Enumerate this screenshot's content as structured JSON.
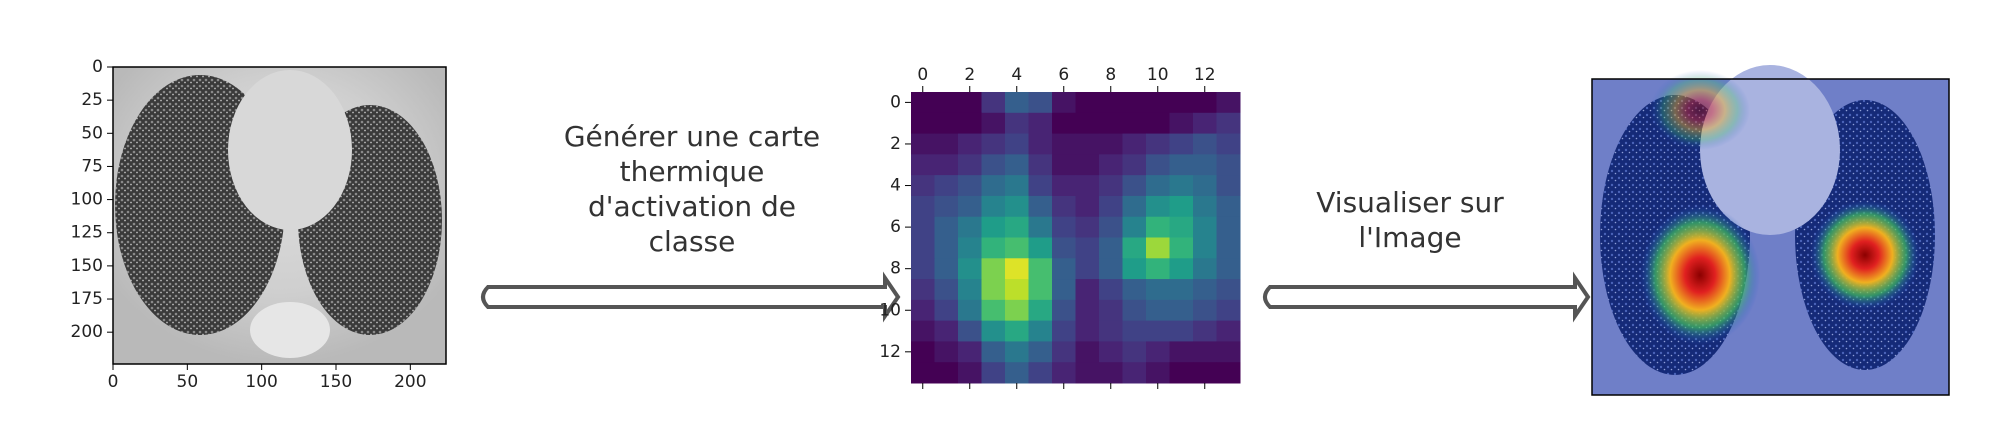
{
  "input_image": {
    "xlim": [
      0,
      224
    ],
    "ylim": [
      0,
      224
    ],
    "xticks": [
      0,
      50,
      100,
      150,
      200
    ],
    "yticks": [
      0,
      25,
      50,
      75,
      100,
      125,
      150,
      175,
      200
    ]
  },
  "step_1": {
    "lines": [
      "Générer une carte",
      "thermique",
      "d'activation de",
      "classe"
    ]
  },
  "heatmap": {
    "colormap": "viridis",
    "vlim": [
      0,
      1
    ],
    "xlim": [
      -0.5,
      13.5
    ],
    "ylim": [
      -0.5,
      13.5
    ],
    "xticks": [
      0,
      2,
      4,
      6,
      8,
      10,
      12
    ],
    "yticks": [
      0,
      2,
      4,
      6,
      8,
      10,
      12
    ],
    "values": [
      [
        0,
        0,
        0,
        0.15,
        0.3,
        0.25,
        0.05,
        0,
        0,
        0,
        0,
        0,
        0,
        0.05
      ],
      [
        0,
        0,
        0,
        0.05,
        0.15,
        0.1,
        0,
        0,
        0,
        0,
        0,
        0.05,
        0.1,
        0.15
      ],
      [
        0.05,
        0.05,
        0.1,
        0.15,
        0.2,
        0.1,
        0.05,
        0.05,
        0.05,
        0.1,
        0.15,
        0.2,
        0.25,
        0.2
      ],
      [
        0.1,
        0.1,
        0.15,
        0.25,
        0.3,
        0.15,
        0.05,
        0.05,
        0.1,
        0.15,
        0.25,
        0.3,
        0.3,
        0.25
      ],
      [
        0.15,
        0.2,
        0.25,
        0.35,
        0.4,
        0.2,
        0.1,
        0.1,
        0.15,
        0.25,
        0.35,
        0.4,
        0.35,
        0.25
      ],
      [
        0.2,
        0.25,
        0.3,
        0.45,
        0.5,
        0.3,
        0.15,
        0.1,
        0.2,
        0.35,
        0.5,
        0.55,
        0.4,
        0.3
      ],
      [
        0.2,
        0.3,
        0.4,
        0.55,
        0.6,
        0.4,
        0.2,
        0.15,
        0.25,
        0.45,
        0.65,
        0.6,
        0.45,
        0.3
      ],
      [
        0.2,
        0.3,
        0.45,
        0.65,
        0.7,
        0.55,
        0.25,
        0.2,
        0.3,
        0.6,
        0.85,
        0.65,
        0.45,
        0.3
      ],
      [
        0.2,
        0.3,
        0.5,
        0.8,
        0.95,
        0.7,
        0.3,
        0.2,
        0.3,
        0.55,
        0.65,
        0.55,
        0.4,
        0.3
      ],
      [
        0.15,
        0.25,
        0.45,
        0.8,
        0.9,
        0.7,
        0.3,
        0.1,
        0.2,
        0.3,
        0.35,
        0.35,
        0.3,
        0.25
      ],
      [
        0.1,
        0.2,
        0.4,
        0.7,
        0.8,
        0.6,
        0.25,
        0.1,
        0.15,
        0.25,
        0.3,
        0.3,
        0.25,
        0.2
      ],
      [
        0.05,
        0.1,
        0.25,
        0.5,
        0.6,
        0.45,
        0.2,
        0.1,
        0.15,
        0.2,
        0.2,
        0.2,
        0.15,
        0.1
      ],
      [
        0,
        0.05,
        0.1,
        0.3,
        0.4,
        0.3,
        0.15,
        0.05,
        0.1,
        0.15,
        0.1,
        0.05,
        0.05,
        0.05
      ],
      [
        0,
        0,
        0.05,
        0.2,
        0.3,
        0.2,
        0.1,
        0.05,
        0.05,
        0.1,
        0.05,
        0,
        0,
        0
      ]
    ]
  },
  "step_2": {
    "lines": [
      "Visualiser sur",
      "l'Image"
    ]
  }
}
